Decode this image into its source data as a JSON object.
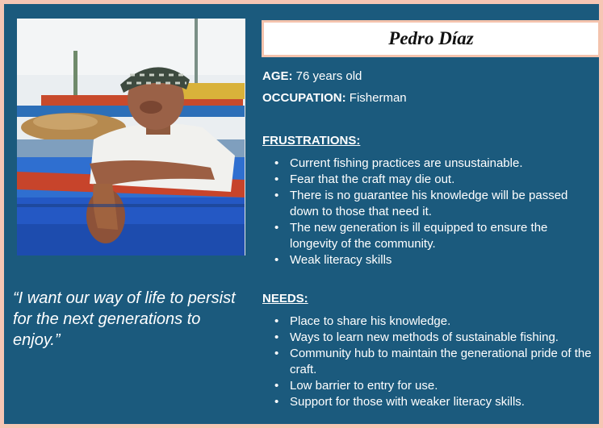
{
  "persona": {
    "name": "Pedro Díaz",
    "age_label": "AGE:",
    "age_value": "76 years old",
    "occupation_label": "OCCUPATION:",
    "occupation_value": "Fisherman",
    "quote": "“I want our way of life to persist for the next generations to enjoy.”"
  },
  "frustrations": {
    "title": "FRUSTRATIONS:",
    "items": [
      "Current fishing practices are unsustainable.",
      "Fear that the craft may die out.",
      "There is no guarantee his knowledge will be passed down to those that need it.",
      "The new generation is ill equipped to ensure the longevity of the community.",
      "Weak literacy skills"
    ]
  },
  "needs": {
    "title": "NEEDS:",
    "items": [
      "Place to share his knowledge.",
      "Ways to learn new methods of sustainable fishing.",
      "Community hub to maintain the generational pride of the craft.",
      "Low barrier to entry for use.",
      "Support for those with weaker literacy skills."
    ]
  },
  "colors": {
    "card_background": "#1b5a7d",
    "page_border": "#f6c6b4",
    "name_box_border": "#f4c3ad"
  }
}
